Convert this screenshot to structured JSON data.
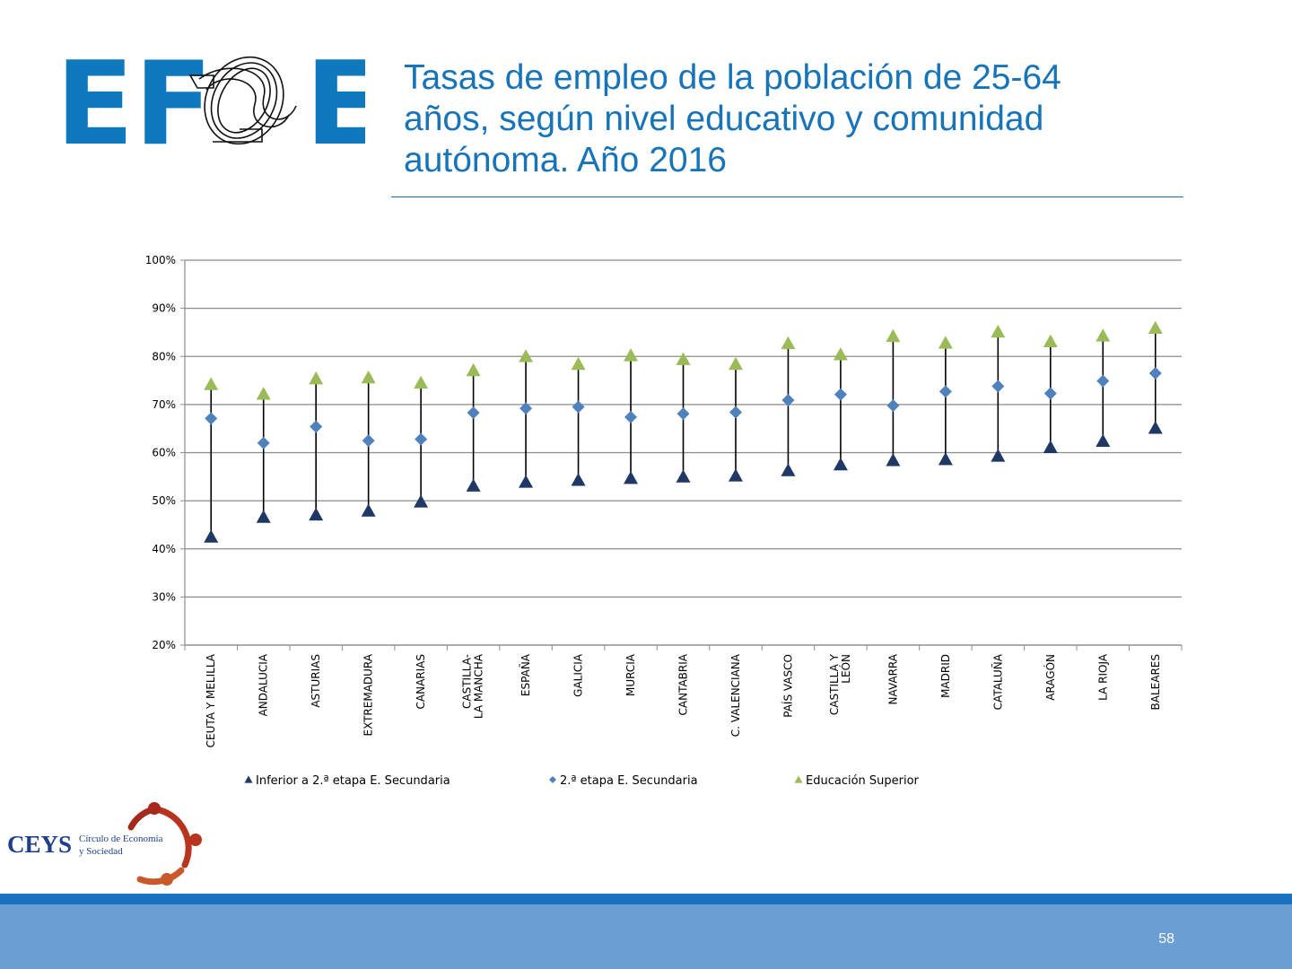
{
  "header": {
    "logo_text_left": "EF",
    "logo_text_right": "E",
    "title": "Tasas de empleo de la población de 25-64\naños, según nivel educativo y  comunidad\nautónoma. Año 2016"
  },
  "footer": {
    "org_name": "CEYS",
    "org_subtitle_1": "Círculo de Economía",
    "org_subtitle_2": "y Sociedad",
    "page_number": "58"
  },
  "colors": {
    "brand_blue": "#0f79bd",
    "series_inferior": "#1f3864",
    "series_secundaria": "#4f81bd",
    "series_superior": "#9bbb59"
  },
  "chart_data": {
    "type": "scatter",
    "title": "",
    "xlabel": "",
    "ylabel": "",
    "ylim": [
      0.2,
      1.0
    ],
    "y_ticks": [
      "20%",
      "30%",
      "40%",
      "50%",
      "60%",
      "70%",
      "80%",
      "90%",
      "100%"
    ],
    "grid": true,
    "legend_position": "bottom",
    "categories": [
      [
        "CEUTA Y MELILLA"
      ],
      [
        "ANDALUCIA"
      ],
      [
        "ASTURIAS"
      ],
      [
        "EXTREMADURA"
      ],
      [
        "CANARIAS"
      ],
      [
        "CASTILLA-",
        "LA MANCHA"
      ],
      [
        "ESPAÑA"
      ],
      [
        "GALICIA"
      ],
      [
        "MURCIA"
      ],
      [
        "CANTABRIA"
      ],
      [
        "C. VALENCIANA"
      ],
      [
        "PAÍS VASCO"
      ],
      [
        "CASTILLA Y",
        "LEÓN"
      ],
      [
        "NAVARRA"
      ],
      [
        "MADRID"
      ],
      [
        "CATALUÑA"
      ],
      [
        "ARAGÓN"
      ],
      [
        "LA RIOJA"
      ],
      [
        "BALEARES"
      ]
    ],
    "series": [
      {
        "name": "Inferior a 2.ª etapa E. Secundaria",
        "marker": "triangle",
        "color": "#1f3864",
        "values": [
          0.425,
          0.466,
          0.471,
          0.479,
          0.498,
          0.531,
          0.539,
          0.543,
          0.547,
          0.55,
          0.552,
          0.563,
          0.575,
          0.584,
          0.586,
          0.593,
          0.611,
          0.624,
          0.651
        ]
      },
      {
        "name": "2.ª etapa E. Secundaria",
        "marker": "diamond",
        "color": "#4f81bd",
        "values": [
          0.671,
          0.62,
          0.654,
          0.625,
          0.628,
          0.683,
          0.692,
          0.695,
          0.674,
          0.681,
          0.684,
          0.709,
          0.721,
          0.698,
          0.727,
          0.738,
          0.723,
          0.749,
          0.765
        ]
      },
      {
        "name": "Educación Superior",
        "marker": "triangle",
        "color": "#9bbb59",
        "values": [
          0.742,
          0.722,
          0.754,
          0.756,
          0.745,
          0.771,
          0.8,
          0.784,
          0.802,
          0.794,
          0.784,
          0.827,
          0.804,
          0.842,
          0.828,
          0.851,
          0.831,
          0.843,
          0.859
        ]
      }
    ]
  }
}
